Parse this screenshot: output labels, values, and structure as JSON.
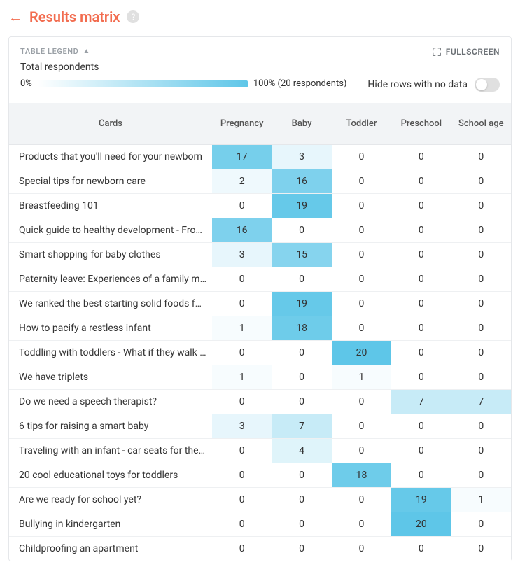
{
  "header": {
    "title": "Results matrix"
  },
  "legend": {
    "label": "TABLE LEGEND",
    "total_label": "Total respondents",
    "min_pct": "0%",
    "max_pct_label": "100% (20 respondents)",
    "fullscreen_label": "FULLSCREEN",
    "hide_rows_label": "Hide rows with no data"
  },
  "table": {
    "max_value": 20,
    "heat_color": "#5ec6e8",
    "columns": [
      "Cards",
      "Pregnancy",
      "Baby",
      "Toddler",
      "Preschool",
      "School age"
    ],
    "rows": [
      {
        "card": "Products that you'll need for your newborn",
        "values": [
          17,
          3,
          0,
          0,
          0
        ]
      },
      {
        "card": "Special tips for newborn care",
        "values": [
          2,
          16,
          0,
          0,
          0
        ]
      },
      {
        "card": "Breastfeeding 101",
        "values": [
          0,
          19,
          0,
          0,
          0
        ]
      },
      {
        "card": "Quick guide to healthy development - From infancy",
        "values": [
          16,
          0,
          0,
          0,
          0
        ]
      },
      {
        "card": "Smart shopping for baby clothes",
        "values": [
          3,
          15,
          0,
          0,
          0
        ]
      },
      {
        "card": "Paternity leave: Experiences of a family man",
        "values": [
          0,
          0,
          0,
          0,
          0
        ]
      },
      {
        "card": "We ranked the best starting solid foods for your baby",
        "values": [
          0,
          19,
          0,
          0,
          0
        ]
      },
      {
        "card": "How to pacify a restless infant",
        "values": [
          1,
          18,
          0,
          0,
          0
        ]
      },
      {
        "card": "Toddling with toddlers - What if they walk funny",
        "values": [
          0,
          0,
          20,
          0,
          0
        ]
      },
      {
        "card": "We have triplets",
        "values": [
          1,
          0,
          1,
          0,
          0
        ]
      },
      {
        "card": "Do we need a speech therapist?",
        "values": [
          0,
          0,
          0,
          7,
          7
        ]
      },
      {
        "card": "6 tips for raising a smart baby",
        "values": [
          3,
          7,
          0,
          0,
          0
        ]
      },
      {
        "card": "Traveling with an infant - car seats for the smallest",
        "values": [
          0,
          4,
          0,
          0,
          0
        ]
      },
      {
        "card": "20 cool educational toys for toddlers",
        "values": [
          0,
          0,
          18,
          0,
          0
        ]
      },
      {
        "card": "Are we ready for school yet?",
        "values": [
          0,
          0,
          0,
          19,
          1
        ]
      },
      {
        "card": "Bullying in kindergarten",
        "values": [
          0,
          0,
          0,
          20,
          0
        ]
      },
      {
        "card": "Childproofing an apartment",
        "values": [
          0,
          0,
          0,
          0,
          0
        ]
      }
    ]
  },
  "colors": {
    "accent": "#f26c4f",
    "heat_full": "#5ec6e8",
    "border": "#e5e7ea",
    "header_bg": "#f2f4f6"
  }
}
